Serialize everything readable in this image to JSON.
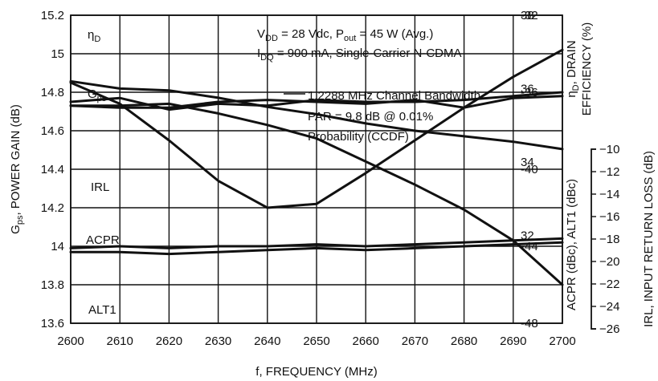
{
  "chart_data": {
    "type": "line",
    "x": [
      2600,
      2610,
      2620,
      2630,
      2640,
      2650,
      2660,
      2670,
      2680,
      2690,
      2700
    ],
    "xlabel": "f, FREQUENCY (MHz)",
    "xlim": [
      2600,
      2700
    ],
    "xticks": [
      "2600",
      "2610",
      "2620",
      "2630",
      "2640",
      "2650",
      "2660",
      "2670",
      "2680",
      "2690",
      "2700"
    ],
    "grid": true,
    "axes": {
      "gain": {
        "label_main": "G",
        "label_sub": "ps",
        "label_rest": ", POWER GAIN (dB)",
        "ylim": [
          13.6,
          15.2
        ],
        "ticks": [
          "13.6",
          "13.8",
          "14",
          "14.2",
          "14.4",
          "14.6",
          "14.8",
          "15",
          "15.2"
        ]
      },
      "efficiency": {
        "label_line1_main": "η",
        "label_line1_sub": "D",
        "label_line1_rest": ", DRAIN",
        "label_line2": "EFFICIENCY (%)",
        "ylim": [
          29.6,
          38
        ],
        "ticks": [
          "32",
          "34",
          "36",
          "38"
        ]
      },
      "acpr": {
        "label": "ACPR (dBc), ALT1 (dBc)",
        "ylim": [
          -48,
          -32
        ],
        "ticks": [
          "-32",
          "-36",
          "-40",
          "-44",
          "-48"
        ]
      },
      "irl": {
        "label": "IRL, INPUT RETURN LOSS (dB)",
        "ylim": [
          -26,
          -10
        ],
        "ticks": [
          "−10",
          "−12",
          "−14",
          "−16",
          "−18",
          "−20",
          "−22",
          "−24",
          "−26"
        ]
      }
    },
    "series": [
      {
        "name_main": "η",
        "name_sub": "D",
        "axis": "efficiency",
        "values": [
          36.2,
          36.0,
          35.95,
          35.75,
          35.5,
          35.3,
          35.05,
          34.85,
          34.7,
          34.55,
          34.35
        ]
      },
      {
        "name_main": "G",
        "name_sub": "ps",
        "axis": "gain",
        "values": [
          14.73,
          14.73,
          14.74,
          14.69,
          14.63,
          14.56,
          14.44,
          14.32,
          14.19,
          14.03,
          13.8
        ]
      },
      {
        "name": "IRL",
        "axis": "irl",
        "values": [
          -13.5,
          -14.6,
          -16.5,
          -18.6,
          -20.0,
          -19.8,
          -18.2,
          -16.5,
          -14.8,
          -13.2,
          -11.8
        ]
      },
      {
        "name": "ACPR",
        "axis": "acpr",
        "values": [
          -36.5,
          -36.3,
          -36.9,
          -36.6,
          -36.7,
          -36.4,
          -36.5,
          -36.5,
          -36.4,
          -36.2,
          -36.0
        ]
      },
      {
        "name": "",
        "axis": "acpr",
        "values": [
          -36.7,
          -36.8,
          -36.8,
          -36.5,
          -36.4,
          -36.5,
          -36.6,
          -36.4,
          -36.8,
          -36.3,
          -36.2
        ]
      },
      {
        "name": "ALT1",
        "axis": "acpr",
        "values": [
          -44.1,
          -44.0,
          -44.1,
          -44.0,
          -44.0,
          -43.9,
          -44.0,
          -43.9,
          -43.8,
          -43.7,
          -43.6
        ]
      },
      {
        "name": "",
        "axis": "acpr",
        "values": [
          -44.3,
          -44.3,
          -44.4,
          -44.3,
          -44.2,
          -44.1,
          -44.2,
          -44.1,
          -44.0,
          -43.9,
          -43.8
        ]
      }
    ],
    "annotations": {
      "line1_prefix": "V",
      "line1_sub": "DD",
      "line1_mid": " = 28 Vdc, P",
      "line1_sub2": "out",
      "line1_rest": " = 45 W (Avg.)",
      "line2_prefix": "I",
      "line2_sub": "DQ",
      "line2_rest": " = 900 mA, Single-Carrier N-CDMA",
      "line3": "1.2288 MHz Channel Bandwidth",
      "line4": "PAR = 9.8 dB @ 0.01%",
      "line5": "Probability (CCDF)"
    }
  }
}
